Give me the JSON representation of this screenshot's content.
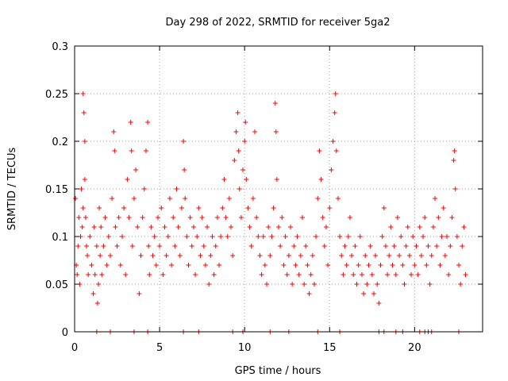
{
  "chart_data": {
    "type": "scatter",
    "title": "Day 298 of 2022, SRMTID for receiver 5ga2",
    "xlabel": "GPS time / hours",
    "ylabel": "SRMTID / TECUs",
    "xlim": [
      0,
      24
    ],
    "ylim": [
      0,
      0.3
    ],
    "x_ticks": [
      0,
      5,
      10,
      15,
      20
    ],
    "x_tick_labels": [
      "0",
      "5",
      "10",
      "15",
      "20"
    ],
    "y_ticks": [
      0,
      0.05,
      0.1,
      0.15,
      0.2,
      0.25,
      0.3
    ],
    "y_tick_labels": [
      "0",
      "0.05",
      "0.1",
      "0.15",
      "0.2",
      "0.25",
      "0.3"
    ],
    "grid": true,
    "marker": "+",
    "color": "#ff0000",
    "series": [
      {
        "name": "SRMTID",
        "points": [
          [
            0.05,
            0.14
          ],
          [
            0.1,
            0.07
          ],
          [
            0.15,
            0.06
          ],
          [
            0.2,
            0.09
          ],
          [
            0.25,
            0.12
          ],
          [
            0.3,
            0.05
          ],
          [
            0.35,
            0.1
          ],
          [
            0.4,
            0.15
          ],
          [
            0.45,
            0.11
          ],
          [
            0.5,
            0.13
          ],
          [
            0.5,
            0.25
          ],
          [
            0.55,
            0.23
          ],
          [
            0.6,
            0.2
          ],
          [
            0.6,
            0.16
          ],
          [
            0.65,
            0.12
          ],
          [
            0.7,
            0.09
          ],
          [
            0.75,
            0.08
          ],
          [
            0.8,
            0.06
          ],
          [
            0.9,
            0.1
          ],
          [
            1.0,
            0.07
          ],
          [
            1.1,
            0.04
          ],
          [
            1.15,
            0.11
          ],
          [
            1.2,
            0.06
          ],
          [
            1.3,
            0.09
          ],
          [
            1.35,
            0.03
          ],
          [
            1.4,
            0.05
          ],
          [
            1.45,
            0.13
          ],
          [
            1.5,
            0.08
          ],
          [
            1.55,
            0.11
          ],
          [
            1.6,
            0.06
          ],
          [
            1.7,
            0.09
          ],
          [
            1.8,
            0.12
          ],
          [
            1.9,
            0.07
          ],
          [
            2.0,
            0.1
          ],
          [
            2.1,
            0.08
          ],
          [
            2.2,
            0.14
          ],
          [
            2.3,
            0.21
          ],
          [
            2.35,
            0.19
          ],
          [
            2.4,
            0.11
          ],
          [
            2.5,
            0.09
          ],
          [
            2.6,
            0.12
          ],
          [
            2.7,
            0.07
          ],
          [
            2.8,
            0.1
          ],
          [
            2.9,
            0.13
          ],
          [
            3.0,
            0.06
          ],
          [
            3.1,
            0.16
          ],
          [
            3.2,
            0.12
          ],
          [
            3.3,
            0.22
          ],
          [
            3.35,
            0.19
          ],
          [
            3.4,
            0.09
          ],
          [
            3.5,
            0.14
          ],
          [
            3.6,
            0.17
          ],
          [
            3.7,
            0.11
          ],
          [
            3.8,
            0.04
          ],
          [
            3.9,
            0.08
          ],
          [
            4.0,
            0.12
          ],
          [
            4.1,
            0.15
          ],
          [
            4.2,
            0.19
          ],
          [
            4.3,
            0.22
          ],
          [
            4.35,
            0.09
          ],
          [
            4.4,
            0.06
          ],
          [
            4.5,
            0.11
          ],
          [
            4.6,
            0.08
          ],
          [
            4.7,
            0.1
          ],
          [
            4.8,
            0.07
          ],
          [
            4.9,
            0.12
          ],
          [
            5.0,
            0.09
          ],
          [
            5.1,
            0.13
          ],
          [
            5.2,
            0.06
          ],
          [
            5.3,
            0.11
          ],
          [
            5.4,
            0.08
          ],
          [
            5.5,
            0.1
          ],
          [
            5.6,
            0.14
          ],
          [
            5.7,
            0.07
          ],
          [
            5.8,
            0.12
          ],
          [
            5.9,
            0.09
          ],
          [
            6.0,
            0.15
          ],
          [
            6.1,
            0.11
          ],
          [
            6.2,
            0.08
          ],
          [
            6.3,
            0.13
          ],
          [
            6.4,
            0.2
          ],
          [
            6.45,
            0.17
          ],
          [
            6.5,
            0.14
          ],
          [
            6.6,
            0.1
          ],
          [
            6.7,
            0.07
          ],
          [
            6.8,
            0.12
          ],
          [
            6.9,
            0.09
          ],
          [
            7.0,
            0.11
          ],
          [
            7.1,
            0.06
          ],
          [
            7.2,
            0.1
          ],
          [
            7.3,
            0.13
          ],
          [
            7.4,
            0.08
          ],
          [
            7.5,
            0.12
          ],
          [
            7.6,
            0.09
          ],
          [
            7.7,
            0.07
          ],
          [
            7.8,
            0.11
          ],
          [
            7.9,
            0.05
          ],
          [
            8.0,
            0.08
          ],
          [
            8.1,
            0.1
          ],
          [
            8.2,
            0.06
          ],
          [
            8.3,
            0.09
          ],
          [
            8.4,
            0.12
          ],
          [
            8.5,
            0.07
          ],
          [
            8.6,
            0.1
          ],
          [
            8.7,
            0.13
          ],
          [
            8.8,
            0.16
          ],
          [
            8.9,
            0.12
          ],
          [
            9.0,
            0.1
          ],
          [
            9.1,
            0.14
          ],
          [
            9.2,
            0.11
          ],
          [
            9.3,
            0.08
          ],
          [
            9.4,
            0.18
          ],
          [
            9.5,
            0.21
          ],
          [
            9.6,
            0.23
          ],
          [
            9.65,
            0.19
          ],
          [
            9.7,
            0.15
          ],
          [
            9.8,
            0.12
          ],
          [
            9.9,
            0.17
          ],
          [
            10.0,
            0.2
          ],
          [
            10.05,
            0.22
          ],
          [
            10.1,
            0.16
          ],
          [
            10.2,
            0.13
          ],
          [
            10.3,
            0.11
          ],
          [
            10.4,
            0.09
          ],
          [
            10.5,
            0.14
          ],
          [
            10.6,
            0.21
          ],
          [
            10.7,
            0.12
          ],
          [
            10.8,
            0.1
          ],
          [
            10.9,
            0.08
          ],
          [
            11.0,
            0.06
          ],
          [
            11.1,
            0.1
          ],
          [
            11.2,
            0.07
          ],
          [
            11.3,
            0.05
          ],
          [
            11.4,
            0.11
          ],
          [
            11.5,
            0.08
          ],
          [
            11.6,
            0.1
          ],
          [
            11.7,
            0.13
          ],
          [
            11.8,
            0.24
          ],
          [
            11.85,
            0.21
          ],
          [
            11.9,
            0.16
          ],
          [
            12.0,
            0.11
          ],
          [
            12.1,
            0.09
          ],
          [
            12.2,
            0.12
          ],
          [
            12.3,
            0.07
          ],
          [
            12.4,
            0.1
          ],
          [
            12.5,
            0.06
          ],
          [
            12.6,
            0.08
          ],
          [
            12.7,
            0.11
          ],
          [
            12.8,
            0.05
          ],
          [
            12.9,
            0.09
          ],
          [
            13.0,
            0.07
          ],
          [
            13.1,
            0.1
          ],
          [
            13.2,
            0.06
          ],
          [
            13.3,
            0.08
          ],
          [
            13.4,
            0.12
          ],
          [
            13.5,
            0.05
          ],
          [
            13.6,
            0.09
          ],
          [
            13.7,
            0.07
          ],
          [
            13.8,
            0.04
          ],
          [
            13.9,
            0.06
          ],
          [
            14.0,
            0.08
          ],
          [
            14.1,
            0.05
          ],
          [
            14.2,
            0.1
          ],
          [
            14.3,
            0.14
          ],
          [
            14.4,
            0.19
          ],
          [
            14.5,
            0.16
          ],
          [
            14.6,
            0.12
          ],
          [
            14.7,
            0.09
          ],
          [
            14.8,
            0.11
          ],
          [
            14.9,
            0.07
          ],
          [
            15.0,
            0.13
          ],
          [
            15.1,
            0.17
          ],
          [
            15.2,
            0.2
          ],
          [
            15.3,
            0.23
          ],
          [
            15.35,
            0.25
          ],
          [
            15.4,
            0.19
          ],
          [
            15.5,
            0.14
          ],
          [
            15.6,
            0.1
          ],
          [
            15.7,
            0.08
          ],
          [
            15.8,
            0.06
          ],
          [
            15.9,
            0.09
          ],
          [
            16.0,
            0.07
          ],
          [
            16.1,
            0.1
          ],
          [
            16.2,
            0.12
          ],
          [
            16.3,
            0.08
          ],
          [
            16.4,
            0.06
          ],
          [
            16.5,
            0.09
          ],
          [
            16.6,
            0.05
          ],
          [
            16.7,
            0.07
          ],
          [
            16.8,
            0.1
          ],
          [
            16.9,
            0.06
          ],
          [
            17.0,
            0.04
          ],
          [
            17.1,
            0.08
          ],
          [
            17.2,
            0.05
          ],
          [
            17.3,
            0.07
          ],
          [
            17.4,
            0.09
          ],
          [
            17.5,
            0.06
          ],
          [
            17.6,
            0.04
          ],
          [
            17.7,
            0.08
          ],
          [
            17.8,
            0.05
          ],
          [
            17.9,
            0.03
          ],
          [
            18.0,
            0.07
          ],
          [
            18.1,
            0.1
          ],
          [
            18.2,
            0.13
          ],
          [
            18.3,
            0.09
          ],
          [
            18.4,
            0.06
          ],
          [
            18.5,
            0.08
          ],
          [
            18.6,
            0.11
          ],
          [
            18.7,
            0.07
          ],
          [
            18.8,
            0.09
          ],
          [
            18.9,
            0.06
          ],
          [
            19.0,
            0.12
          ],
          [
            19.1,
            0.08
          ],
          [
            19.2,
            0.1
          ],
          [
            19.3,
            0.07
          ],
          [
            19.4,
            0.05
          ],
          [
            19.5,
            0.09
          ],
          [
            19.6,
            0.11
          ],
          [
            19.7,
            0.08
          ],
          [
            19.8,
            0.06
          ],
          [
            19.9,
            0.1
          ],
          [
            20.0,
            0.07
          ],
          [
            20.1,
            0.09
          ],
          [
            20.2,
            0.06
          ],
          [
            20.3,
            0.11
          ],
          [
            20.4,
            0.08
          ],
          [
            20.5,
            0.1
          ],
          [
            20.6,
            0.12
          ],
          [
            20.7,
            0.07
          ],
          [
            20.8,
            0.09
          ],
          [
            20.9,
            0.05
          ],
          [
            21.0,
            0.08
          ],
          [
            21.1,
            0.11
          ],
          [
            21.2,
            0.14
          ],
          [
            21.3,
            0.09
          ],
          [
            21.4,
            0.12
          ],
          [
            21.5,
            0.07
          ],
          [
            21.6,
            0.1
          ],
          [
            21.7,
            0.13
          ],
          [
            21.8,
            0.08
          ],
          [
            21.9,
            0.1
          ],
          [
            22.0,
            0.06
          ],
          [
            22.1,
            0.09
          ],
          [
            22.2,
            0.12
          ],
          [
            22.3,
            0.18
          ],
          [
            22.35,
            0.19
          ],
          [
            22.4,
            0.15
          ],
          [
            22.5,
            0.1
          ],
          [
            22.6,
            0.07
          ],
          [
            22.7,
            0.05
          ],
          [
            22.8,
            0.09
          ],
          [
            22.9,
            0.11
          ],
          [
            23.0,
            0.06
          ]
        ],
        "zero_points": [
          1.3,
          2.1,
          3.5,
          4.3,
          6.4,
          7.3,
          9.3,
          9.9,
          11.5,
          12.6,
          14.3,
          15.6,
          17.9,
          18.2,
          18.9,
          19.3,
          20.3,
          20.6,
          20.8,
          21.0,
          22.6
        ]
      }
    ]
  }
}
